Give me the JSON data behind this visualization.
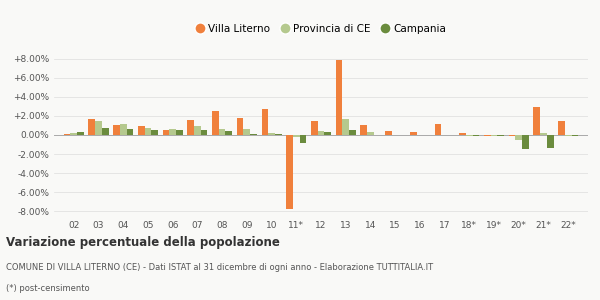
{
  "years": [
    "02",
    "03",
    "04",
    "05",
    "06",
    "07",
    "08",
    "09",
    "10",
    "11*",
    "12",
    "13",
    "14",
    "15",
    "16",
    "17",
    "18*",
    "19*",
    "20*",
    "21*",
    "22*"
  ],
  "villa_literno": [
    0.1,
    1.7,
    1.1,
    0.9,
    0.5,
    1.6,
    2.5,
    1.8,
    2.7,
    -7.8,
    1.5,
    7.9,
    1.1,
    0.4,
    0.3,
    1.2,
    0.2,
    -0.1,
    -0.1,
    2.9,
    1.5
  ],
  "provincia_ce": [
    0.2,
    1.5,
    1.2,
    0.7,
    0.6,
    0.9,
    0.6,
    0.6,
    0.2,
    -0.2,
    0.4,
    1.7,
    0.3,
    0.0,
    0.0,
    0.0,
    -0.1,
    -0.1,
    -0.5,
    0.2,
    -0.1
  ],
  "campania": [
    0.3,
    0.7,
    0.6,
    0.5,
    0.5,
    0.5,
    0.4,
    0.1,
    0.1,
    -0.8,
    0.3,
    0.5,
    0.0,
    0.0,
    0.0,
    0.0,
    -0.1,
    -0.1,
    -1.5,
    -1.4,
    -0.1
  ],
  "color_villa": "#f0803c",
  "color_prov": "#b5c98e",
  "color_camp": "#6b8c3e",
  "ylim": [
    -8.5,
    8.5
  ],
  "yticks": [
    -8.0,
    -6.0,
    -4.0,
    -2.0,
    0.0,
    2.0,
    4.0,
    6.0,
    8.0
  ],
  "title": "Variazione percentuale della popolazione",
  "subtitle1": "COMUNE DI VILLA LITERNO (CE) - Dati ISTAT al 31 dicembre di ogni anno - Elaborazione TUTTITALIA.IT",
  "subtitle2": "(*) post-censimento",
  "legend_labels": [
    "Villa Literno",
    "Provincia di CE",
    "Campania"
  ],
  "bar_width": 0.27,
  "bg_color": "#f9f9f7",
  "grid_color": "#dddddd"
}
